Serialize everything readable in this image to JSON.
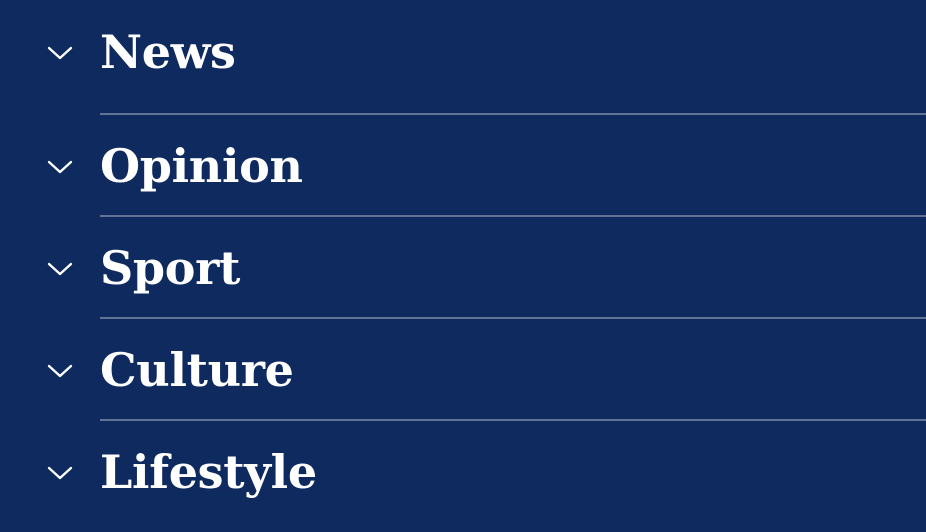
{
  "colors": {
    "background": "#0f2a5f",
    "text": "#ffffff",
    "divider": "rgba(255,255,255,0.35)"
  },
  "menu": {
    "items": [
      {
        "label": "News",
        "icon": "chevron-down-icon"
      },
      {
        "label": "Opinion",
        "icon": "chevron-down-icon"
      },
      {
        "label": "Sport",
        "icon": "chevron-down-icon"
      },
      {
        "label": "Culture",
        "icon": "chevron-down-icon"
      },
      {
        "label": "Lifestyle",
        "icon": "chevron-down-icon"
      }
    ]
  }
}
